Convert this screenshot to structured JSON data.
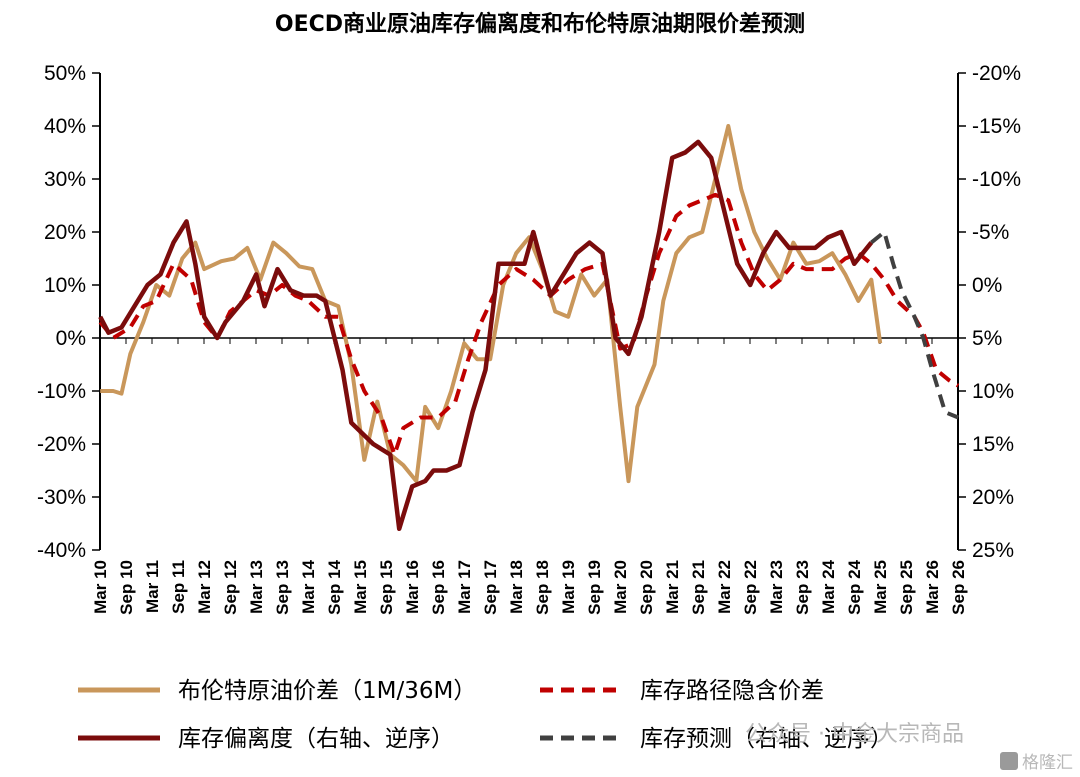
{
  "chart_data": {
    "type": "line",
    "title": "OECD商业原油库存偏离度和布伦特原油期限价差预测",
    "y_left": {
      "ticks": [
        "50%",
        "40%",
        "30%",
        "20%",
        "10%",
        "0%",
        "-10%",
        "-20%",
        "-30%",
        "-40%"
      ],
      "ylim": [
        -40,
        50
      ]
    },
    "y_right": {
      "ticks": [
        "-20%",
        "-15%",
        "-10%",
        "-5%",
        "0%",
        "5%",
        "10%",
        "15%",
        "20%",
        "25%"
      ],
      "ylim": [
        -20,
        25
      ],
      "inverted": true
    },
    "x_labels": [
      "Mar 10",
      "Sep 10",
      "Mar 11",
      "Sep 11",
      "Mar 12",
      "Sep 12",
      "Mar 13",
      "Sep 13",
      "Mar 14",
      "Sep 14",
      "Mar 15",
      "Sep 15",
      "Mar 16",
      "Sep 16",
      "Mar 17",
      "Sep 17",
      "Mar 18",
      "Sep 18",
      "Mar 19",
      "Sep 19",
      "Mar 20",
      "Sep 20",
      "Mar 21",
      "Sep 21",
      "Mar 22",
      "Sep 22",
      "Mar 23",
      "Sep 23",
      "Mar 24",
      "Sep 24",
      "Mar 25",
      "Sep 25",
      "Mar 26",
      "Sep 26"
    ],
    "x_range": [
      2010.167,
      2026.667
    ],
    "grid": false,
    "legend_position": "bottom",
    "series": [
      {
        "name": "布伦特原油价差（1M/36M）",
        "axis": "left",
        "color": "#C9975B",
        "dash": false,
        "points": [
          [
            2010.17,
            -10
          ],
          [
            2010.42,
            -10
          ],
          [
            2010.58,
            -10.5
          ],
          [
            2010.75,
            -3
          ],
          [
            2011.0,
            3
          ],
          [
            2011.25,
            10
          ],
          [
            2011.5,
            8
          ],
          [
            2011.75,
            15
          ],
          [
            2012.0,
            18
          ],
          [
            2012.17,
            13
          ],
          [
            2012.5,
            14.5
          ],
          [
            2012.75,
            15
          ],
          [
            2013.0,
            17
          ],
          [
            2013.25,
            11
          ],
          [
            2013.5,
            18
          ],
          [
            2013.75,
            16
          ],
          [
            2014.0,
            13.5
          ],
          [
            2014.25,
            13
          ],
          [
            2014.5,
            7
          ],
          [
            2014.75,
            6
          ],
          [
            2015.0,
            -5
          ],
          [
            2015.25,
            -23
          ],
          [
            2015.5,
            -12
          ],
          [
            2015.75,
            -22
          ],
          [
            2016.0,
            -24
          ],
          [
            2016.25,
            -27
          ],
          [
            2016.42,
            -13
          ],
          [
            2016.67,
            -17
          ],
          [
            2016.92,
            -10
          ],
          [
            2017.17,
            -1
          ],
          [
            2017.42,
            -4
          ],
          [
            2017.67,
            -4
          ],
          [
            2017.92,
            10
          ],
          [
            2018.17,
            16
          ],
          [
            2018.42,
            19
          ],
          [
            2018.67,
            13
          ],
          [
            2018.92,
            5
          ],
          [
            2019.17,
            4
          ],
          [
            2019.42,
            12
          ],
          [
            2019.67,
            8
          ],
          [
            2019.92,
            11
          ],
          [
            2020.17,
            -13
          ],
          [
            2020.33,
            -27
          ],
          [
            2020.5,
            -13
          ],
          [
            2020.83,
            -5
          ],
          [
            2021.0,
            7
          ],
          [
            2021.25,
            16
          ],
          [
            2021.5,
            19
          ],
          [
            2021.75,
            20
          ],
          [
            2022.0,
            30
          ],
          [
            2022.25,
            40
          ],
          [
            2022.5,
            28
          ],
          [
            2022.75,
            20
          ],
          [
            2023.0,
            15
          ],
          [
            2023.25,
            11
          ],
          [
            2023.5,
            18
          ],
          [
            2023.75,
            14
          ],
          [
            2024.0,
            14.5
          ],
          [
            2024.25,
            16
          ],
          [
            2024.5,
            12
          ],
          [
            2024.75,
            7
          ],
          [
            2025.0,
            11
          ],
          [
            2025.17,
            -1
          ]
        ]
      },
      {
        "name": "库存路径隐含价差",
        "axis": "right",
        "color": "#C00000",
        "dash": true,
        "points": [
          [
            2010.17,
            3.5
          ],
          [
            2010.42,
            5
          ],
          [
            2010.75,
            4
          ],
          [
            2011.0,
            2
          ],
          [
            2011.25,
            1.5
          ],
          [
            2011.58,
            -2
          ],
          [
            2011.92,
            -0.5
          ],
          [
            2012.17,
            3.5
          ],
          [
            2012.42,
            5
          ],
          [
            2012.67,
            2.5
          ],
          [
            2012.92,
            1.5
          ],
          [
            2013.17,
            0.5
          ],
          [
            2013.42,
            1
          ],
          [
            2013.67,
            0
          ],
          [
            2013.92,
            1
          ],
          [
            2014.17,
            1.5
          ],
          [
            2014.5,
            3
          ],
          [
            2014.75,
            3
          ],
          [
            2015.0,
            7
          ],
          [
            2015.25,
            10
          ],
          [
            2015.58,
            12.5
          ],
          [
            2015.83,
            16
          ],
          [
            2016.0,
            13.5
          ],
          [
            2016.33,
            12.5
          ],
          [
            2016.67,
            12.5
          ],
          [
            2017.0,
            11
          ],
          [
            2017.25,
            7
          ],
          [
            2017.5,
            3.5
          ],
          [
            2017.83,
            0
          ],
          [
            2018.17,
            -1.5
          ],
          [
            2018.5,
            -0.5
          ],
          [
            2018.83,
            1
          ],
          [
            2019.17,
            -0.5
          ],
          [
            2019.5,
            -1.5
          ],
          [
            2019.83,
            -2
          ],
          [
            2020.17,
            6
          ],
          [
            2020.42,
            5.5
          ],
          [
            2020.67,
            1
          ],
          [
            2020.92,
            -3
          ],
          [
            2021.25,
            -6.5
          ],
          [
            2021.5,
            -7.5
          ],
          [
            2021.75,
            -8
          ],
          [
            2022.0,
            -8.5
          ],
          [
            2022.25,
            -8
          ],
          [
            2022.5,
            -4
          ],
          [
            2022.75,
            -1
          ],
          [
            2023.0,
            0.5
          ],
          [
            2023.25,
            -0.5
          ],
          [
            2023.5,
            -2
          ],
          [
            2023.75,
            -1.5
          ],
          [
            2024.0,
            -1.5
          ],
          [
            2024.25,
            -1.5
          ],
          [
            2024.5,
            -2.5
          ],
          [
            2024.75,
            -3
          ],
          [
            2025.0,
            -2
          ],
          [
            2025.25,
            -0.5
          ],
          [
            2025.5,
            1.5
          ],
          [
            2025.83,
            3
          ],
          [
            2026.0,
            4.5
          ],
          [
            2026.25,
            8
          ],
          [
            2026.5,
            9
          ],
          [
            2026.67,
            9.5
          ]
        ]
      },
      {
        "name": "库存偏离度（右轴、逆序）",
        "axis": "right",
        "color": "#7B0C0C",
        "dash": false,
        "points": [
          [
            2010.17,
            3
          ],
          [
            2010.33,
            4.5
          ],
          [
            2010.58,
            4
          ],
          [
            2010.83,
            2
          ],
          [
            2011.08,
            0
          ],
          [
            2011.33,
            -1
          ],
          [
            2011.58,
            -4
          ],
          [
            2011.83,
            -6
          ],
          [
            2012.0,
            -2
          ],
          [
            2012.17,
            3
          ],
          [
            2012.42,
            5
          ],
          [
            2012.58,
            3.5
          ],
          [
            2012.92,
            1.5
          ],
          [
            2013.17,
            -1
          ],
          [
            2013.33,
            2
          ],
          [
            2013.58,
            -1.5
          ],
          [
            2013.83,
            0.5
          ],
          [
            2014.08,
            1
          ],
          [
            2014.33,
            1
          ],
          [
            2014.5,
            1.5
          ],
          [
            2014.83,
            8
          ],
          [
            2015.0,
            13
          ],
          [
            2015.42,
            15
          ],
          [
            2015.75,
            16
          ],
          [
            2015.92,
            23
          ],
          [
            2016.17,
            19
          ],
          [
            2016.42,
            18.5
          ],
          [
            2016.58,
            17.5
          ],
          [
            2016.83,
            17.5
          ],
          [
            2017.08,
            17
          ],
          [
            2017.33,
            12
          ],
          [
            2017.58,
            8
          ],
          [
            2017.83,
            -2
          ],
          [
            2018.08,
            -2
          ],
          [
            2018.33,
            -2
          ],
          [
            2018.5,
            -5
          ],
          [
            2018.83,
            1
          ],
          [
            2019.08,
            -1
          ],
          [
            2019.33,
            -3
          ],
          [
            2019.58,
            -4
          ],
          [
            2019.83,
            -3
          ],
          [
            2020.08,
            5
          ],
          [
            2020.33,
            6.5
          ],
          [
            2020.58,
            3
          ],
          [
            2020.92,
            -5
          ],
          [
            2021.17,
            -12
          ],
          [
            2021.42,
            -12.5
          ],
          [
            2021.67,
            -13.5
          ],
          [
            2021.92,
            -12
          ],
          [
            2022.17,
            -7
          ],
          [
            2022.42,
            -2
          ],
          [
            2022.67,
            0
          ],
          [
            2022.92,
            -3
          ],
          [
            2023.17,
            -5
          ],
          [
            2023.42,
            -3.5
          ],
          [
            2023.67,
            -3.5
          ],
          [
            2023.92,
            -3.5
          ],
          [
            2024.17,
            -4.5
          ],
          [
            2024.42,
            -5
          ],
          [
            2024.67,
            -2
          ],
          [
            2025.0,
            -4
          ]
        ]
      },
      {
        "name": "库存预测（右轴、逆序）",
        "axis": "right",
        "color": "#404040",
        "dash": true,
        "points": [
          [
            2025.0,
            -4
          ],
          [
            2025.25,
            -5
          ],
          [
            2025.42,
            -2
          ],
          [
            2025.58,
            0.5
          ],
          [
            2025.83,
            3
          ],
          [
            2026.0,
            5
          ],
          [
            2026.17,
            8
          ],
          [
            2026.42,
            12
          ],
          [
            2026.67,
            12.5
          ]
        ]
      }
    ]
  },
  "watermark": "公众号 · 中金大宗商品",
  "corner_badge": "格隆汇"
}
